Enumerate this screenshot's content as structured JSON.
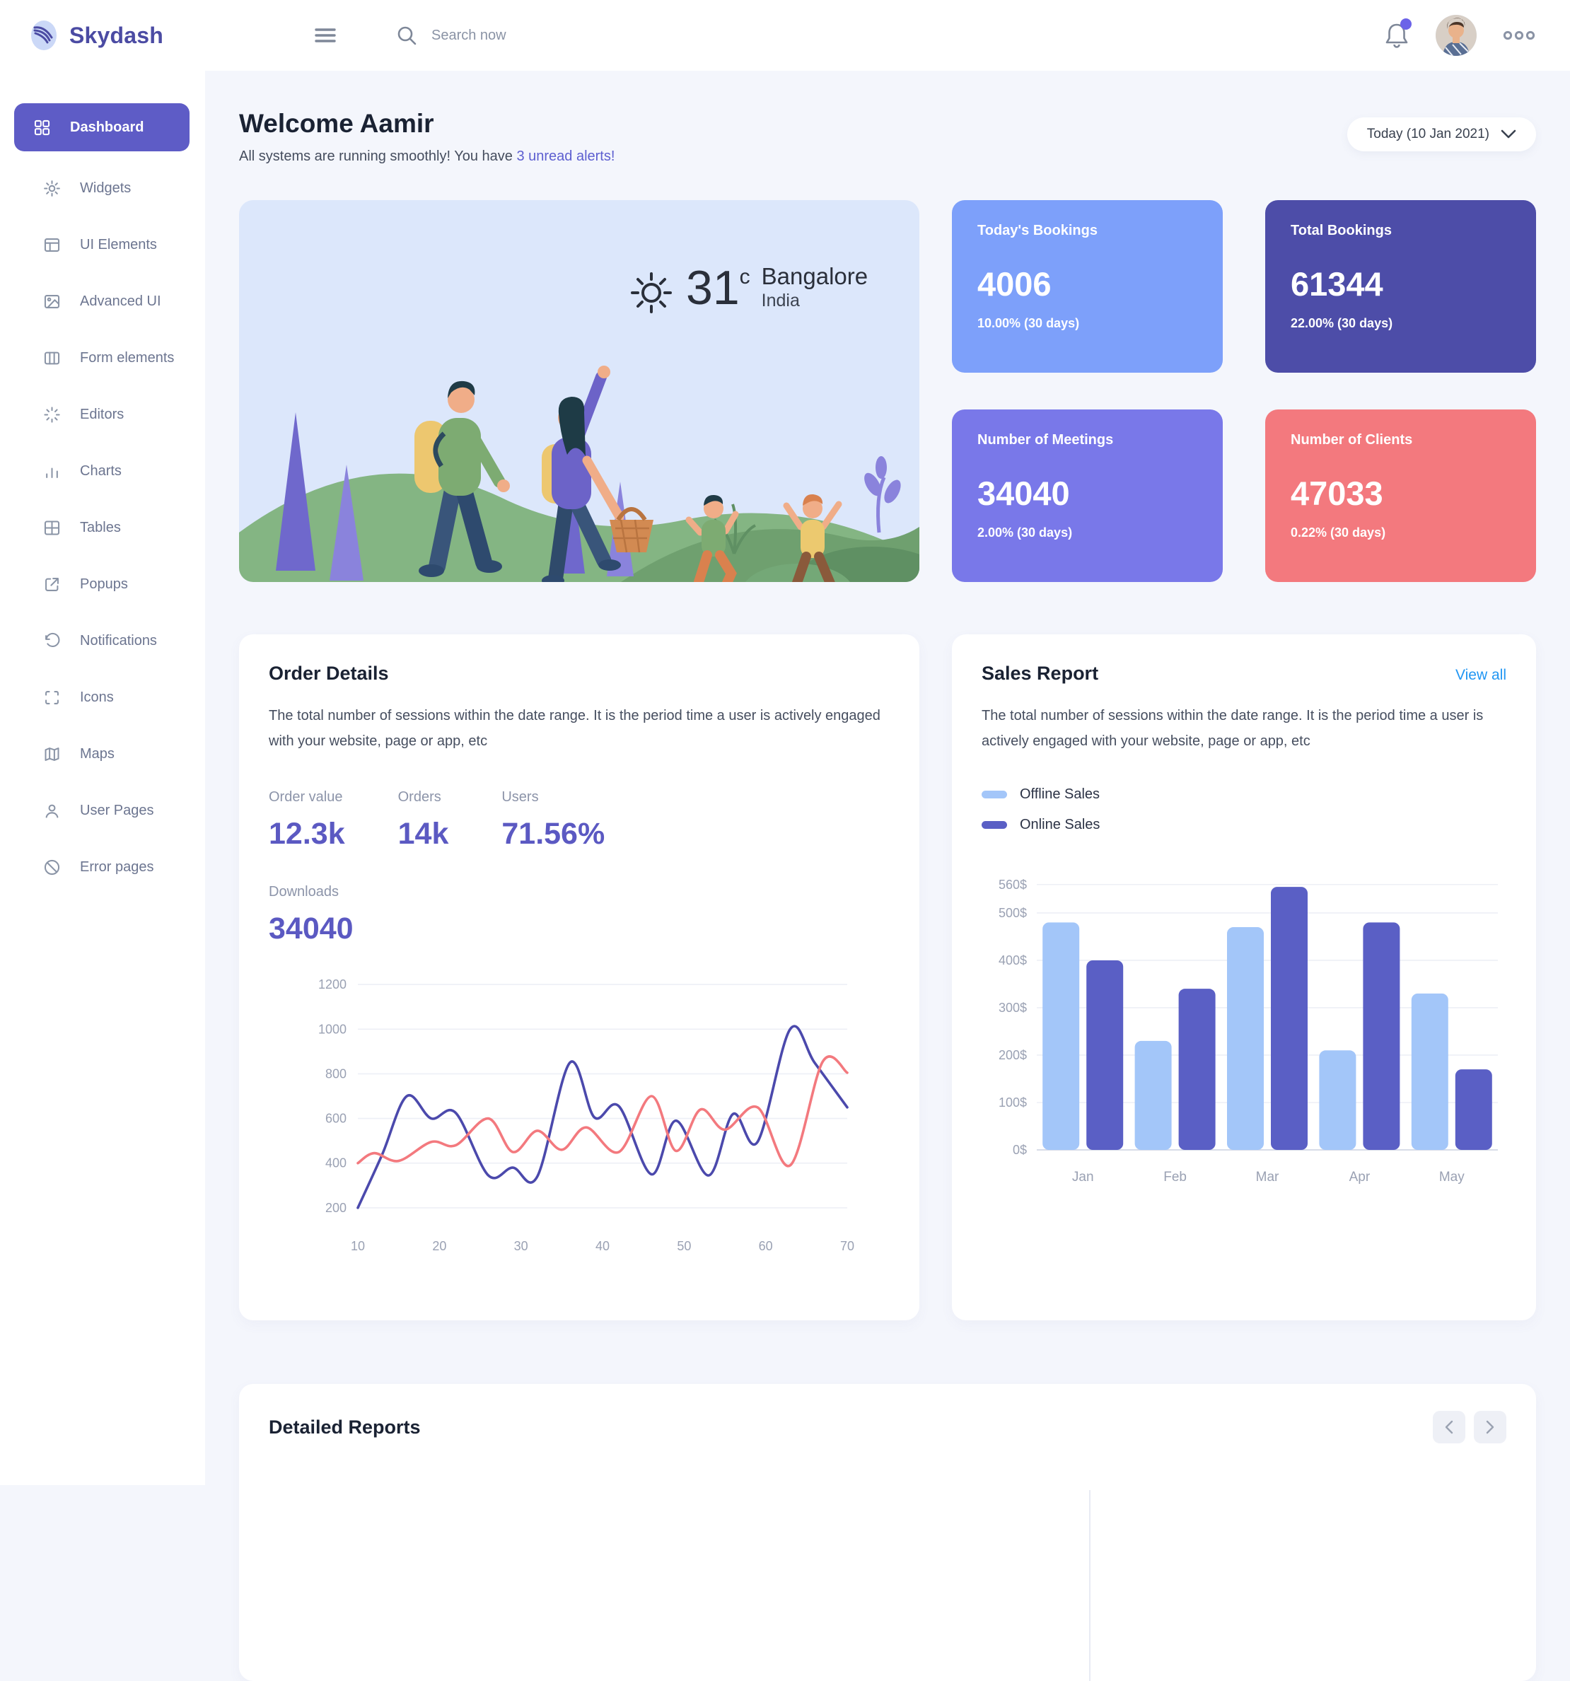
{
  "topbar": {
    "brand": "Skydash",
    "search_placeholder": "Search now"
  },
  "sidebar": {
    "items": [
      {
        "label": "Dashboard",
        "icon": "grid",
        "active": true
      },
      {
        "label": "Widgets",
        "icon": "gear",
        "active": false
      },
      {
        "label": "UI Elements",
        "icon": "layout",
        "active": false
      },
      {
        "label": "Advanced UI",
        "icon": "image",
        "active": false
      },
      {
        "label": "Form elements",
        "icon": "columns",
        "active": false
      },
      {
        "label": "Editors",
        "icon": "loader",
        "active": false
      },
      {
        "label": "Charts",
        "icon": "bar-chart",
        "active": false
      },
      {
        "label": "Tables",
        "icon": "table",
        "active": false
      },
      {
        "label": "Popups",
        "icon": "external-link",
        "active": false
      },
      {
        "label": "Notifications",
        "icon": "history",
        "active": false
      },
      {
        "label": "Icons",
        "icon": "crop",
        "active": false
      },
      {
        "label": "Maps",
        "icon": "map",
        "active": false
      },
      {
        "label": "User Pages",
        "icon": "user",
        "active": false
      },
      {
        "label": "Error pages",
        "icon": "slash",
        "active": false
      }
    ]
  },
  "header": {
    "title": "Welcome Aamir",
    "subtitle": "All systems are running smoothly! You have ",
    "subtitle_link": "3 unread alerts!",
    "date_filter": "Today (10 Jan 2021)"
  },
  "weather": {
    "temperature": "31",
    "unit": "c",
    "city": "Bangalore",
    "country": "India"
  },
  "stat_cards": [
    {
      "title": "Today's Bookings",
      "value": "4006",
      "change": "10.00% (30 days)",
      "color": "#7DA0FA"
    },
    {
      "title": "Total Bookings",
      "value": "61344",
      "change": "22.00% (30 days)",
      "color": "#4D4DA8"
    },
    {
      "title": "Number of Meetings",
      "value": "34040",
      "change": "2.00% (30 days)",
      "color": "#7978E9"
    },
    {
      "title": "Number of Clients",
      "value": "47033",
      "change": "0.22% (30 days)",
      "color": "#F3797E"
    }
  ],
  "order_details": {
    "title": "Order Details",
    "description": "The total number of sessions within the date range. It is the period time a user is actively engaged with your website, page or app, etc",
    "metrics": [
      {
        "label": "Order value",
        "value": "12.3k"
      },
      {
        "label": "Orders",
        "value": "14k"
      },
      {
        "label": "Users",
        "value": "71.56%"
      }
    ],
    "downloads": {
      "label": "Downloads",
      "value": "34040"
    }
  },
  "sales_report": {
    "title": "Sales Report",
    "view_all": "View all",
    "description": "The total number of sessions within the date range. It is the period time a user is actively engaged with your website, page or app, etc",
    "legend": [
      {
        "label": "Offline Sales",
        "color": "#A3C6F9"
      },
      {
        "label": "Online Sales",
        "color": "#5A5FC5"
      }
    ]
  },
  "detailed_reports": {
    "title": "Detailed Reports"
  },
  "chart_data": [
    {
      "type": "line",
      "name": "order-details-sessions",
      "x_ticks": [
        10,
        20,
        30,
        40,
        50,
        60,
        70
      ],
      "y_ticks": [
        200,
        400,
        600,
        800,
        1000,
        1200
      ],
      "x_domain": [
        10,
        70
      ],
      "y_domain": [
        130,
        1270
      ],
      "grid": true,
      "series": [
        {
          "color": "#4B49AC",
          "points": [
            [
              10,
              200
            ],
            [
              13,
              440
            ],
            [
              16,
              700
            ],
            [
              19,
              600
            ],
            [
              22,
              625
            ],
            [
              26,
              345
            ],
            [
              29,
              380
            ],
            [
              32,
              340
            ],
            [
              36,
              850
            ],
            [
              39,
              605
            ],
            [
              42,
              655
            ],
            [
              46,
              350
            ],
            [
              49,
              590
            ],
            [
              53,
              345
            ],
            [
              56,
              620
            ],
            [
              59,
              495
            ],
            [
              63,
              1000
            ],
            [
              66,
              850
            ],
            [
              70,
              650
            ]
          ]
        },
        {
          "color": "#F3797E",
          "points": [
            [
              10,
              400
            ],
            [
              12,
              445
            ],
            [
              15,
              410
            ],
            [
              19,
              495
            ],
            [
              22,
              480
            ],
            [
              26,
              600
            ],
            [
              29,
              450
            ],
            [
              32,
              545
            ],
            [
              35,
              460
            ],
            [
              38,
              560
            ],
            [
              42,
              450
            ],
            [
              46,
              700
            ],
            [
              49,
              455
            ],
            [
              52,
              640
            ],
            [
              55,
              550
            ],
            [
              59,
              650
            ],
            [
              63,
              390
            ],
            [
              67,
              855
            ],
            [
              70,
              805
            ]
          ]
        }
      ]
    },
    {
      "type": "bar",
      "name": "sales-report-monthly",
      "categories": [
        "Jan",
        "Feb",
        "Mar",
        "Apr",
        "May"
      ],
      "y_ticks": [
        0,
        100,
        200,
        300,
        400,
        500,
        560
      ],
      "y_suffix": "$",
      "y_domain": [
        0,
        585
      ],
      "grid": true,
      "legend_position": "top-left",
      "series": [
        {
          "name": "Offline Sales",
          "color": "#A3C6F9",
          "values": [
            480,
            230,
            470,
            210,
            330
          ]
        },
        {
          "name": "Online Sales",
          "color": "#5A5FC5",
          "values": [
            400,
            340,
            555,
            480,
            170
          ]
        }
      ]
    }
  ]
}
